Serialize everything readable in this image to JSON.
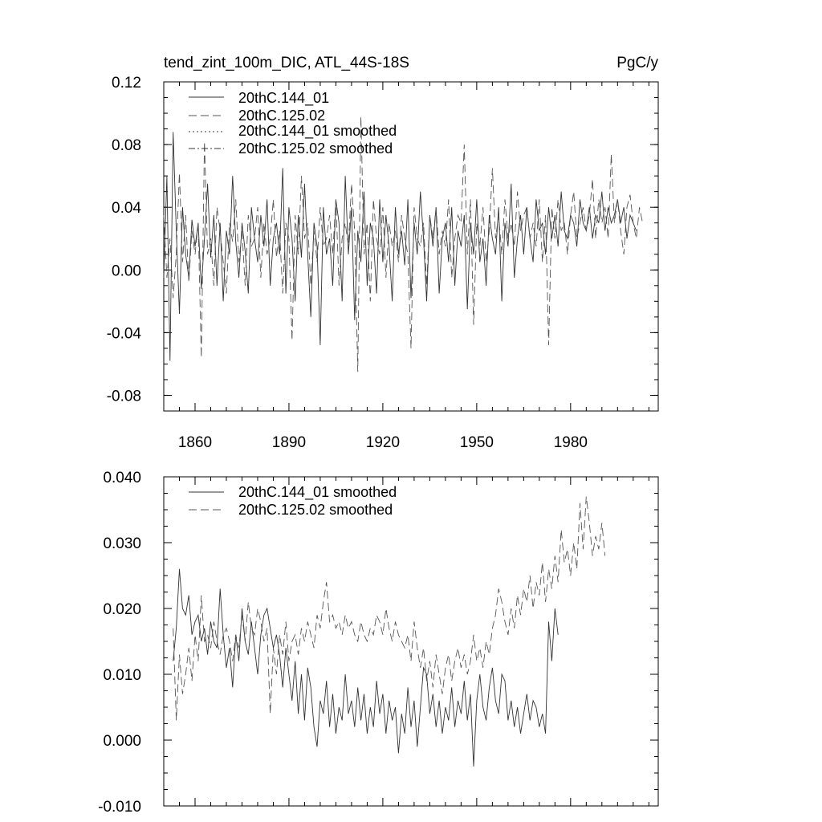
{
  "chart_data": [
    {
      "type": "line",
      "title_left": "tend_zint_100m_DIC, ATL_44S-18S",
      "title_right": "PgC/y",
      "xlim": [
        1850,
        2008
      ],
      "ylim": [
        -0.09,
        0.12
      ],
      "x_ticks": [
        1860,
        1890,
        1920,
        1950,
        1980
      ],
      "y_ticks": [
        -0.08,
        -0.04,
        0.0,
        0.04,
        0.08,
        0.12
      ],
      "y_tick_labels": [
        "-0.08",
        "-0.04",
        "0.00",
        "0.04",
        "0.08",
        "0.12"
      ],
      "x_tick_labels": [
        "1860",
        "1890",
        "1920",
        "1950",
        "1980"
      ],
      "legend_position": "top-left",
      "x_start": 1850,
      "series": [
        {
          "name": "20thC.144_01",
          "style": "solid",
          "color": "#333333",
          "values": [
            -0.005,
            0.06,
            -0.058,
            0.088,
            0.025,
            -0.028,
            0.04,
            0.01,
            -0.005,
            0.032,
            0.015,
            0.03,
            -0.012,
            0.02,
            0.055,
            0.008,
            0.035,
            -0.01,
            0.03,
            -0.02,
            0.025,
            0.01,
            0.06,
            0.018,
            -0.005,
            0.03,
            0.012,
            -0.015,
            0.04,
            0.02,
            0.005,
            0.035,
            0.015,
            0.045,
            -0.01,
            0.02,
            0.03,
            0.01,
            0.065,
            -0.015,
            0.04,
            0.02,
            -0.02,
            0.035,
            0.008,
            0.055,
            0.01,
            -0.03,
            0.03,
            0.015,
            -0.048,
            0.04,
            0.01,
            0.02,
            -0.01,
            0.045,
            0.03,
            -0.02,
            0.06,
            0.01,
            0.04,
            -0.032,
            0.025,
            0.005,
            0.05,
            -0.01,
            0.03,
            0.02,
            -0.015,
            0.045,
            0.005,
            0.035,
            0.015,
            -0.02,
            0.04,
            0.01,
            0.025,
            0.003,
            0.045,
            -0.018,
            0.03,
            0.01,
            0.05,
            0.02,
            -0.02,
            0.035,
            0.015,
            0.04,
            -0.015,
            0.02,
            0.03,
            0.005,
            0.04,
            -0.01,
            0.025,
            0.015,
            0.035,
            -0.025,
            0.03,
            0.01,
            0.045,
            0.005,
            0.02,
            -0.01,
            0.035,
            0.02,
            0.01,
            0.04,
            -0.02,
            0.03,
            0.015,
            0.055,
            -0.005,
            0.02,
            0.035,
            0.01,
            0.04,
            0.02,
            0.005,
            0.045,
            0.025,
            0.03,
            0.01,
            0.04,
            0.02,
            0.035,
            0.015,
            0.05,
            0.025,
            0.02,
            0.035,
            0.03,
            0.015,
            0.045,
            0.03,
            0.025,
            0.04,
            0.02,
            0.035,
            0.03,
            0.05,
            0.025,
            0.04,
            0.03,
            0.035,
            0.045,
            0.03,
            0.04,
            0.02,
            0.035,
            0.03,
            0.025
          ]
        },
        {
          "name": "20thC.125.02",
          "style": "dashed",
          "color": "#555555",
          "values": [
            0.035,
            -0.005,
            0.02,
            -0.018,
            0.01,
            0.062,
            0.005,
            0.035,
            -0.008,
            0.025,
            0.01,
            0.03,
            -0.056,
            0.082,
            0.01,
            0.02,
            -0.01,
            0.04,
            0.025,
            0.005,
            -0.015,
            0.03,
            0.018,
            0.045,
            0.005,
            0.025,
            -0.01,
            0.035,
            0.015,
            0.02,
            0.04,
            -0.005,
            0.03,
            0.01,
            0.02,
            0.045,
            0.008,
            0.025,
            -0.015,
            0.03,
            0.02,
            -0.045,
            0.035,
            0.01,
            0.06,
            0.02,
            0.03,
            -0.01,
            0.025,
            0.005,
            0.04,
            0.015,
            0.02,
            0.035,
            0.01,
            0.045,
            -0.01,
            0.02,
            0.03,
            0.015,
            0.055,
            0.025,
            -0.065,
            0.098,
            0.01,
            0.03,
            -0.02,
            0.045,
            0.02,
            0.01,
            0.04,
            -0.005,
            0.03,
            0.015,
            0.025,
            0.005,
            0.035,
            0.02,
            0.01,
            -0.05,
            0.04,
            0.02,
            0.015,
            0.03,
            -0.01,
            0.035,
            0.02,
            0.04,
            0.01,
            0.025,
            0.015,
            0.045,
            -0.005,
            0.02,
            0.035,
            0.03,
            0.08,
            0.01,
            0.045,
            -0.035,
            0.03,
            0.015,
            0.04,
            0.005,
            0.025,
            0.065,
            0.02,
            0.035,
            0.01,
            0.045,
            0.02,
            0.03,
            0.015,
            0.05,
            0.025,
            0.035,
            0.04,
            0.02,
            0.03,
            0.015,
            0.045,
            0.005,
            0.035,
            -0.048,
            0.04,
            0.02,
            0.045,
            0.025,
            0.03,
            0.01,
            0.035,
            0.05,
            0.02,
            0.03,
            0.04,
            0.025,
            0.035,
            0.058,
            0.02,
            0.045,
            0.03,
            0.04,
            0.02,
            0.074,
            0.03,
            0.045,
            0.025,
            0.01,
            0.04,
            0.048,
            0.03,
            0.02,
            0.04,
            0.03
          ]
        },
        {
          "name": "20thC.144_01 smoothed",
          "style": "dotted",
          "color": "#333333",
          "values": []
        },
        {
          "name": "20thC.125.02 smoothed",
          "style": "dashdot",
          "color": "#333333",
          "values": []
        }
      ]
    },
    {
      "type": "line",
      "xlim": [
        1850,
        2008
      ],
      "ylim": [
        -0.01,
        0.04
      ],
      "y_ticks": [
        -0.01,
        0.0,
        0.01,
        0.02,
        0.03,
        0.04
      ],
      "y_tick_labels": [
        "-0.010",
        "0.000",
        "0.010",
        "0.020",
        "0.030",
        "0.040"
      ],
      "legend_position": "top-left",
      "x_start": 1853,
      "series": [
        {
          "name": "20thC.144_01 smoothed",
          "style": "solid",
          "color": "#333333",
          "values": [
            0.012,
            0.017,
            0.026,
            0.02,
            0.019,
            0.022,
            0.016,
            0.018,
            0.019,
            0.015,
            0.017,
            0.013,
            0.018,
            0.015,
            0.014,
            0.023,
            0.016,
            0.011,
            0.014,
            0.008,
            0.016,
            0.012,
            0.02,
            0.015,
            0.013,
            0.018,
            0.014,
            0.01,
            0.016,
            0.019,
            0.02,
            0.017,
            0.014,
            0.016,
            0.013,
            0.008,
            0.014,
            0.01,
            0.006,
            0.012,
            0.004,
            0.01,
            0.003,
            0.011,
            0.008,
            0.002,
            -0.001,
            0.006,
            0.004,
            0.009,
            0.002,
            0.007,
            0.001,
            0.005,
            0.003,
            0.01,
            0.004,
            0.006,
            0.002,
            0.008,
            0.003,
            0.007,
            0.001,
            0.005,
            0.002,
            0.009,
            0.004,
            0.007,
            0.001,
            0.006,
            0.003,
            0.005,
            -0.002,
            0.004,
            0.001,
            0.008,
            0.002,
            0.006,
            -0.001,
            0.005,
            0.011,
            0.01,
            0.004,
            0.007,
            0.002,
            0.006,
            0.001,
            0.005,
            0.003,
            0.008,
            0.002,
            0.006,
            0.004,
            0.009,
            0.003,
            0.007,
            -0.004,
            0.006,
            0.01,
            0.005,
            0.003,
            0.008,
            0.011,
            0.006,
            0.004,
            0.01,
            0.009,
            0.003,
            0.006,
            0.002,
            0.005,
            0.001,
            0.004,
            0.007,
            0.003,
            0.006,
            0.005,
            0.002,
            0.004,
            0.001,
            0.018,
            0.012,
            0.02,
            0.016
          ]
        },
        {
          "name": "20thC.125.02 smoothed",
          "style": "dashed",
          "color": "#555555",
          "values": [
            0.017,
            0.003,
            0.013,
            0.007,
            0.01,
            0.014,
            0.009,
            0.016,
            0.012,
            0.022,
            0.015,
            0.016,
            0.014,
            0.018,
            0.015,
            0.013,
            0.016,
            0.017,
            0.015,
            0.012,
            0.016,
            0.014,
            0.019,
            0.015,
            0.021,
            0.017,
            0.016,
            0.02,
            0.018,
            0.015,
            0.017,
            0.004,
            0.014,
            0.01,
            0.016,
            0.013,
            0.018,
            0.012,
            0.015,
            0.016,
            0.013,
            0.017,
            0.015,
            0.018,
            0.016,
            0.014,
            0.019,
            0.017,
            0.021,
            0.024,
            0.018,
            0.019,
            0.017,
            0.018,
            0.016,
            0.019,
            0.017,
            0.018,
            0.016,
            0.015,
            0.018,
            0.016,
            0.015,
            0.017,
            0.016,
            0.019,
            0.018,
            0.016,
            0.02,
            0.017,
            0.015,
            0.018,
            0.016,
            0.015,
            0.014,
            0.016,
            0.012,
            0.018,
            0.014,
            0.011,
            0.014,
            0.009,
            0.012,
            0.008,
            0.013,
            0.01,
            0.007,
            0.011,
            0.013,
            0.009,
            0.012,
            0.014,
            0.011,
            0.013,
            0.01,
            0.012,
            0.016,
            0.012,
            0.014,
            0.011,
            0.015,
            0.013,
            0.017,
            0.019,
            0.023,
            0.021,
            0.018,
            0.016,
            0.02,
            0.017,
            0.022,
            0.019,
            0.023,
            0.021,
            0.025,
            0.02,
            0.024,
            0.022,
            0.027,
            0.021,
            0.026,
            0.023,
            0.028,
            0.024,
            0.032,
            0.027,
            0.029,
            0.025,
            0.03,
            0.026,
            0.036,
            0.029,
            0.037,
            0.033,
            0.028,
            0.031,
            0.029,
            0.033,
            0.028
          ]
        }
      ]
    }
  ]
}
